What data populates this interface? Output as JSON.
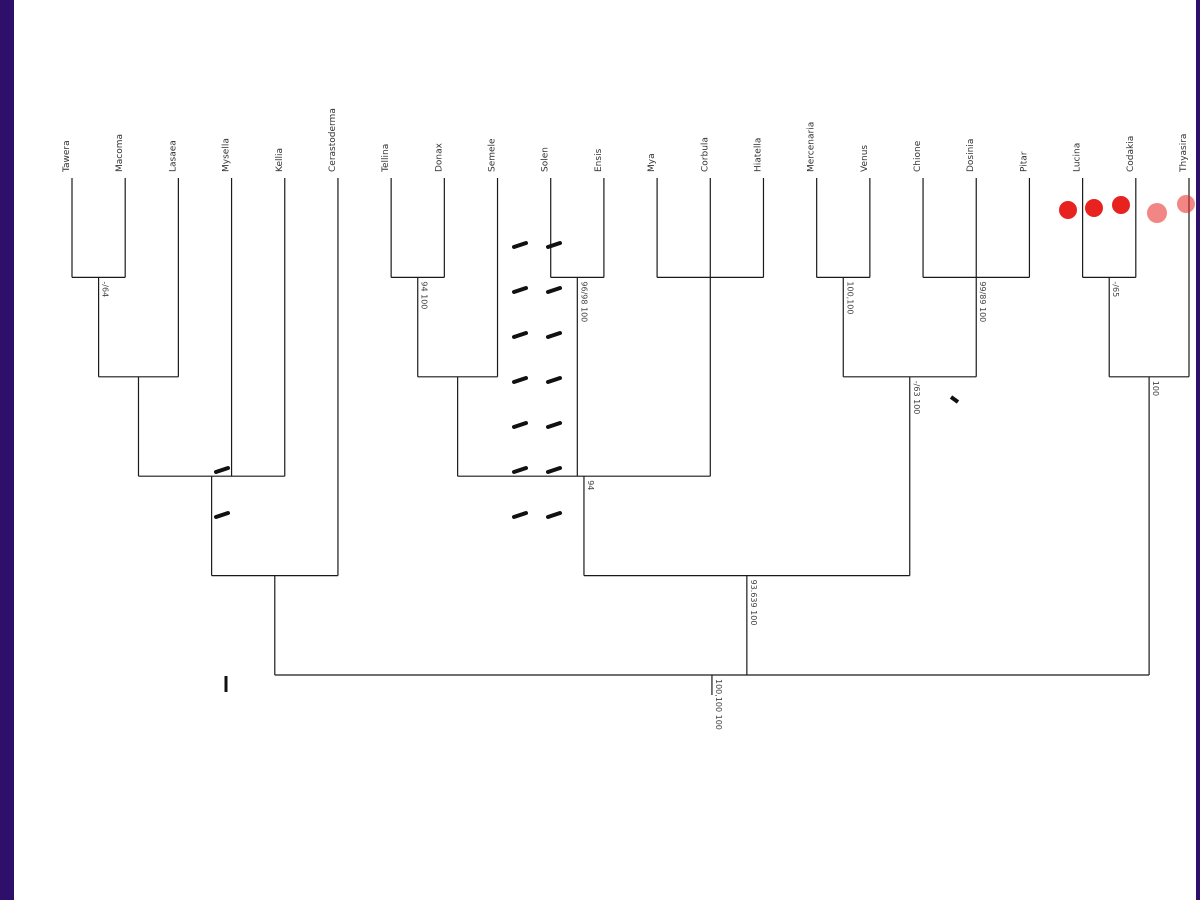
{
  "colors": {
    "frame": "#2e0f6b",
    "branch": "#1a1a1a",
    "label": "#333333",
    "support": "#444444",
    "hatch": "#111111",
    "highlight": "#e8231f"
  },
  "tree": {
    "orientation": "rotated-180",
    "root": {
      "support": "100,100 100",
      "children": [
        {
          "children": [
            {
              "children": [
                {
                  "children": [
                    {
                      "support": "-/64",
                      "children": [
                        {
                          "leaf": "Tawera"
                        },
                        {
                          "leaf": "Macoma"
                        }
                      ]
                    },
                    {
                      "leaf": "Lasaea"
                    }
                  ]
                },
                {
                  "leaf": "Mysella"
                },
                {
                  "leaf": "Kellia"
                }
              ]
            },
            {
              "leaf": "Cerastoderma"
            }
          ]
        },
        {
          "support": "93.639 100",
          "children": [
            {
              "support": "94",
              "children": [
                {
                  "children": [
                    {
                      "support": "94 100",
                      "children": [
                        {
                          "leaf": "Tellina"
                        },
                        {
                          "leaf": "Donax"
                        }
                      ]
                    },
                    {
                      "leaf": "Semele"
                    }
                  ]
                },
                {
                  "support": "96/98 100",
                  "children": [
                    {
                      "leaf": "Solen"
                    },
                    {
                      "leaf": "Ensis"
                    }
                  ]
                },
                {
                  "children": [
                    {
                      "leaf": "Mya"
                    },
                    {
                      "leaf": "Corbula"
                    },
                    {
                      "leaf": "Hiatella"
                    }
                  ]
                }
              ]
            },
            {
              "support": "-/63 100",
              "children": [
                {
                  "support": "100,100",
                  "children": [
                    {
                      "leaf": "Mercenaria"
                    },
                    {
                      "leaf": "Venus"
                    }
                  ]
                },
                {
                  "support": "99/89 100",
                  "children": [
                    {
                      "leaf": "Chione"
                    },
                    {
                      "leaf": "Dosinia"
                    },
                    {
                      "leaf": "Pitar"
                    }
                  ]
                }
              ]
            }
          ]
        },
        {
          "support": "100",
          "children": [
            {
              "support": "-/65",
              "children": [
                {
                  "leaf": "Lucina"
                },
                {
                  "leaf": "Codakia"
                }
              ]
            },
            {
              "leaf": "Thyasira"
            }
          ]
        }
      ]
    }
  }
}
